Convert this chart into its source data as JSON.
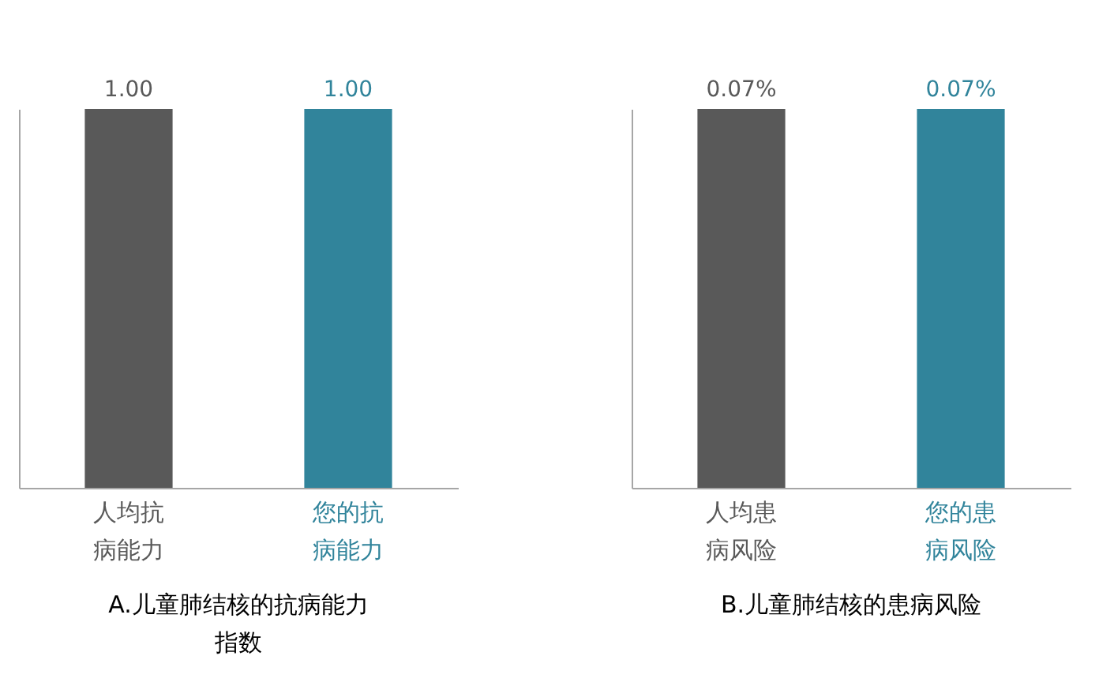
{
  "chart_data": [
    {
      "type": "bar",
      "title": "A.儿童肺结核的抗病能力指数",
      "categories": [
        "人均抗病能力",
        "您的抗病能力"
      ],
      "values": [
        1.0,
        1.0
      ],
      "value_labels": [
        "1.00",
        "1.00"
      ],
      "colors": [
        "#595959",
        "#31849b"
      ],
      "tick_labels": "x"
    },
    {
      "type": "bar",
      "title": "B.儿童肺结核的患病风险",
      "categories": [
        "人均患病风险",
        "您的患病风险"
      ],
      "values": [
        0.07,
        0.07
      ],
      "value_labels": [
        "0.07%",
        "0.07%"
      ],
      "colors": [
        "#595959",
        "#31849b"
      ],
      "tick_labels": "x"
    }
  ]
}
